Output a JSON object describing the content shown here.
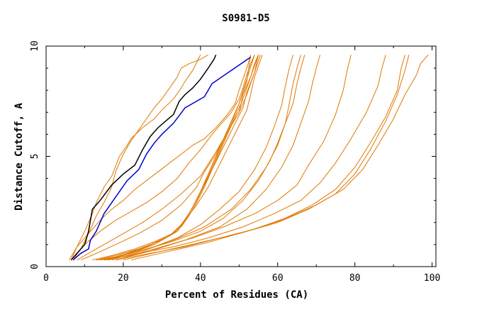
{
  "chart_data": {
    "type": "line",
    "title": "S0981-D5",
    "xlabel": "Percent of Residues (CA)",
    "ylabel": "Distance Cutoff, A",
    "xlim": [
      0,
      101
    ],
    "ylim": [
      0,
      10
    ],
    "xticks": [
      0,
      20,
      40,
      60,
      80,
      100
    ],
    "yticks": [
      0,
      5,
      10
    ],
    "xtick_labels": [
      "0",
      "20",
      "40",
      "60",
      "80",
      "100"
    ],
    "ytick_labels": [
      "0",
      "5",
      "10"
    ],
    "grid": false,
    "legend": "none",
    "colors": {
      "highlight_black": "#000000",
      "highlight_blue": "#0000cc",
      "others": "#e07800"
    },
    "highlight_series": [
      {
        "color": "black",
        "x": [
          6.5,
          8,
          10,
          11,
          12,
          14,
          17,
          20,
          23,
          25,
          27,
          29,
          31,
          33,
          34.5,
          36,
          38,
          40,
          42,
          43.5,
          44
        ],
        "y": [
          0.3,
          0.6,
          1.0,
          1.6,
          2.6,
          3.0,
          3.7,
          4.2,
          4.6,
          5.3,
          5.9,
          6.3,
          6.6,
          6.9,
          7.5,
          7.8,
          8.1,
          8.5,
          9.0,
          9.4,
          9.6
        ]
      },
      {
        "color": "blue",
        "x": [
          7,
          9,
          11,
          11.5,
          13,
          15,
          17,
          21,
          24,
          26,
          28,
          30,
          33,
          36,
          41,
          43,
          48,
          53
        ],
        "y": [
          0.3,
          0.6,
          0.8,
          1.2,
          1.6,
          2.4,
          2.9,
          3.9,
          4.4,
          5.1,
          5.6,
          6.0,
          6.5,
          7.2,
          7.7,
          8.3,
          8.9,
          9.5
        ]
      }
    ],
    "series": [
      {
        "x": [
          7,
          9,
          11,
          13,
          15,
          17,
          18,
          20,
          22,
          24,
          26,
          28,
          30,
          32,
          34,
          35,
          37,
          40,
          42
        ],
        "y": [
          0.3,
          0.8,
          1.5,
          2.3,
          2.9,
          3.6,
          4.3,
          5.1,
          5.7,
          6.2,
          6.7,
          7.2,
          7.6,
          8.1,
          8.6,
          9.0,
          9.2,
          9.4,
          9.6
        ]
      },
      {
        "x": [
          6.5,
          8,
          10,
          12,
          13,
          15,
          17,
          19,
          21,
          22,
          25,
          28,
          30,
          33,
          35,
          36,
          38,
          40
        ],
        "y": [
          0.3,
          0.9,
          1.6,
          2.4,
          2.9,
          3.6,
          4.1,
          5.0,
          5.5,
          5.8,
          6.3,
          6.7,
          7.1,
          7.6,
          8.1,
          8.4,
          8.9,
          9.6
        ]
      },
      {
        "x": [
          6,
          8,
          11,
          14,
          17,
          20,
          23,
          26,
          29,
          32,
          35,
          38,
          41,
          44,
          47,
          49,
          50,
          52,
          53
        ],
        "y": [
          0.3,
          0.9,
          1.5,
          2.1,
          2.6,
          3.0,
          3.5,
          3.9,
          4.3,
          4.7,
          5.1,
          5.5,
          5.8,
          6.3,
          6.9,
          7.4,
          8.0,
          9.0,
          9.6
        ]
      },
      {
        "x": [
          6.5,
          10,
          14,
          18,
          22,
          26,
          30,
          34,
          37,
          40,
          43,
          46,
          48,
          50,
          51,
          52,
          53,
          54
        ],
        "y": [
          0.3,
          1.0,
          1.6,
          2.1,
          2.5,
          2.9,
          3.4,
          4.0,
          4.7,
          5.3,
          6.0,
          6.6,
          7.0,
          7.6,
          8.1,
          8.7,
          9.2,
          9.6
        ]
      },
      {
        "x": [
          8,
          12,
          16,
          20,
          25,
          30,
          35,
          40,
          44,
          47,
          50,
          52,
          54,
          55
        ],
        "y": [
          0.3,
          0.7,
          1.1,
          1.5,
          2.0,
          2.6,
          3.3,
          4.1,
          5.2,
          6.1,
          7.0,
          7.8,
          8.8,
          9.6
        ]
      },
      {
        "x": [
          9,
          13,
          18,
          24,
          30,
          35,
          39,
          41,
          44,
          46,
          48,
          50,
          51,
          53,
          54,
          55
        ],
        "y": [
          0.3,
          0.6,
          1.0,
          1.5,
          2.1,
          2.8,
          3.6,
          4.3,
          5.1,
          5.8,
          6.4,
          7.0,
          7.8,
          8.6,
          9.2,
          9.6
        ]
      },
      {
        "x": [
          12,
          17,
          23,
          29,
          34,
          36,
          38,
          40,
          42,
          44,
          46,
          48,
          50,
          52,
          53
        ],
        "y": [
          0.3,
          0.5,
          0.8,
          1.2,
          1.6,
          2.1,
          2.7,
          3.4,
          4.2,
          5.0,
          5.8,
          6.6,
          7.4,
          8.4,
          9.6
        ]
      },
      {
        "x": [
          13,
          18,
          24,
          30,
          34,
          36,
          38,
          40,
          42,
          44,
          46,
          48,
          50,
          52,
          54
        ],
        "y": [
          0.3,
          0.5,
          0.8,
          1.2,
          1.6,
          2.1,
          2.7,
          3.4,
          4.1,
          4.9,
          5.7,
          6.5,
          7.4,
          8.5,
          9.6
        ]
      },
      {
        "x": [
          14,
          20,
          26,
          31,
          35,
          37,
          39,
          41,
          43,
          45,
          47,
          49,
          51,
          53,
          55
        ],
        "y": [
          0.3,
          0.5,
          0.9,
          1.3,
          1.8,
          2.3,
          2.9,
          3.6,
          4.4,
          5.2,
          6.0,
          6.8,
          7.6,
          8.6,
          9.6
        ]
      },
      {
        "x": [
          15,
          21,
          27,
          32,
          35,
          37,
          39,
          41,
          43,
          45,
          47,
          49,
          51,
          52,
          54,
          55.5
        ],
        "y": [
          0.3,
          0.6,
          1.0,
          1.4,
          1.9,
          2.4,
          3.0,
          3.7,
          4.4,
          5.1,
          5.8,
          6.5,
          7.2,
          7.9,
          8.8,
          9.6
        ]
      },
      {
        "x": [
          15,
          22,
          28,
          33,
          36,
          39,
          42,
          44,
          46,
          48,
          50,
          52,
          53,
          54,
          56
        ],
        "y": [
          0.3,
          0.6,
          1.0,
          1.5,
          2.1,
          2.8,
          3.6,
          4.3,
          5.0,
          5.7,
          6.4,
          7.1,
          7.8,
          8.6,
          9.6
        ]
      },
      {
        "x": [
          13,
          20,
          28,
          34,
          40,
          45,
          50,
          54,
          57,
          59,
          61,
          62,
          63,
          64
        ],
        "y": [
          0.3,
          0.5,
          0.9,
          1.3,
          1.9,
          2.6,
          3.4,
          4.4,
          5.4,
          6.3,
          7.3,
          8.2,
          9.0,
          9.6
        ]
      },
      {
        "x": [
          16,
          24,
          32,
          40,
          46,
          51,
          55,
          58,
          60,
          62,
          64,
          65,
          66,
          67
        ],
        "y": [
          0.3,
          0.7,
          1.1,
          1.6,
          2.2,
          3.0,
          3.9,
          4.8,
          5.6,
          6.5,
          7.4,
          8.3,
          9.0,
          9.6
        ]
      },
      {
        "x": [
          17,
          25,
          33,
          41,
          48,
          53,
          57,
          60,
          62,
          63,
          64,
          65,
          66
        ],
        "y": [
          0.3,
          0.7,
          1.2,
          1.8,
          2.6,
          3.5,
          4.5,
          5.5,
          6.5,
          7.4,
          8.3,
          9.0,
          9.6
        ]
      },
      {
        "x": [
          18,
          27,
          36,
          45,
          52,
          57,
          61,
          64,
          66,
          68,
          69,
          70,
          71
        ],
        "y": [
          0.3,
          0.7,
          1.2,
          1.8,
          2.6,
          3.5,
          4.5,
          5.5,
          6.5,
          7.5,
          8.3,
          9.0,
          9.6
        ]
      },
      {
        "x": [
          15,
          22,
          30,
          38,
          46,
          54,
          60,
          65,
          68,
          72,
          75,
          77,
          78,
          79
        ],
        "y": [
          0.3,
          0.5,
          0.9,
          1.3,
          1.8,
          2.4,
          3.0,
          3.7,
          4.6,
          5.7,
          6.9,
          8.0,
          8.9,
          9.6
        ]
      },
      {
        "x": [
          16,
          24,
          33,
          42,
          51,
          59,
          66,
          71,
          75,
          79,
          83,
          86,
          87,
          88
        ],
        "y": [
          0.3,
          0.6,
          0.9,
          1.3,
          1.8,
          2.4,
          3.0,
          3.8,
          4.7,
          5.8,
          7.0,
          8.2,
          9.0,
          9.6
        ]
      },
      {
        "x": [
          18,
          27,
          36,
          45,
          54,
          62,
          69,
          75,
          80,
          84,
          88,
          91,
          92,
          93
        ],
        "y": [
          0.3,
          0.6,
          0.9,
          1.3,
          1.7,
          2.2,
          2.8,
          3.5,
          4.5,
          5.6,
          6.8,
          8.0,
          9.0,
          9.6
        ]
      },
      {
        "x": [
          20,
          30,
          40,
          50,
          60,
          68,
          75,
          80,
          84,
          88,
          91,
          93,
          94
        ],
        "y": [
          0.3,
          0.7,
          1.1,
          1.5,
          2.0,
          2.6,
          3.3,
          4.2,
          5.3,
          6.6,
          7.8,
          8.9,
          9.6
        ]
      },
      {
        "x": [
          22,
          32,
          42,
          52,
          61,
          70,
          77,
          82,
          86,
          90,
          93,
          96,
          97,
          99
        ],
        "y": [
          0.3,
          0.7,
          1.1,
          1.6,
          2.1,
          2.8,
          3.5,
          4.4,
          5.5,
          6.7,
          7.8,
          8.7,
          9.2,
          9.6
        ]
      }
    ]
  }
}
